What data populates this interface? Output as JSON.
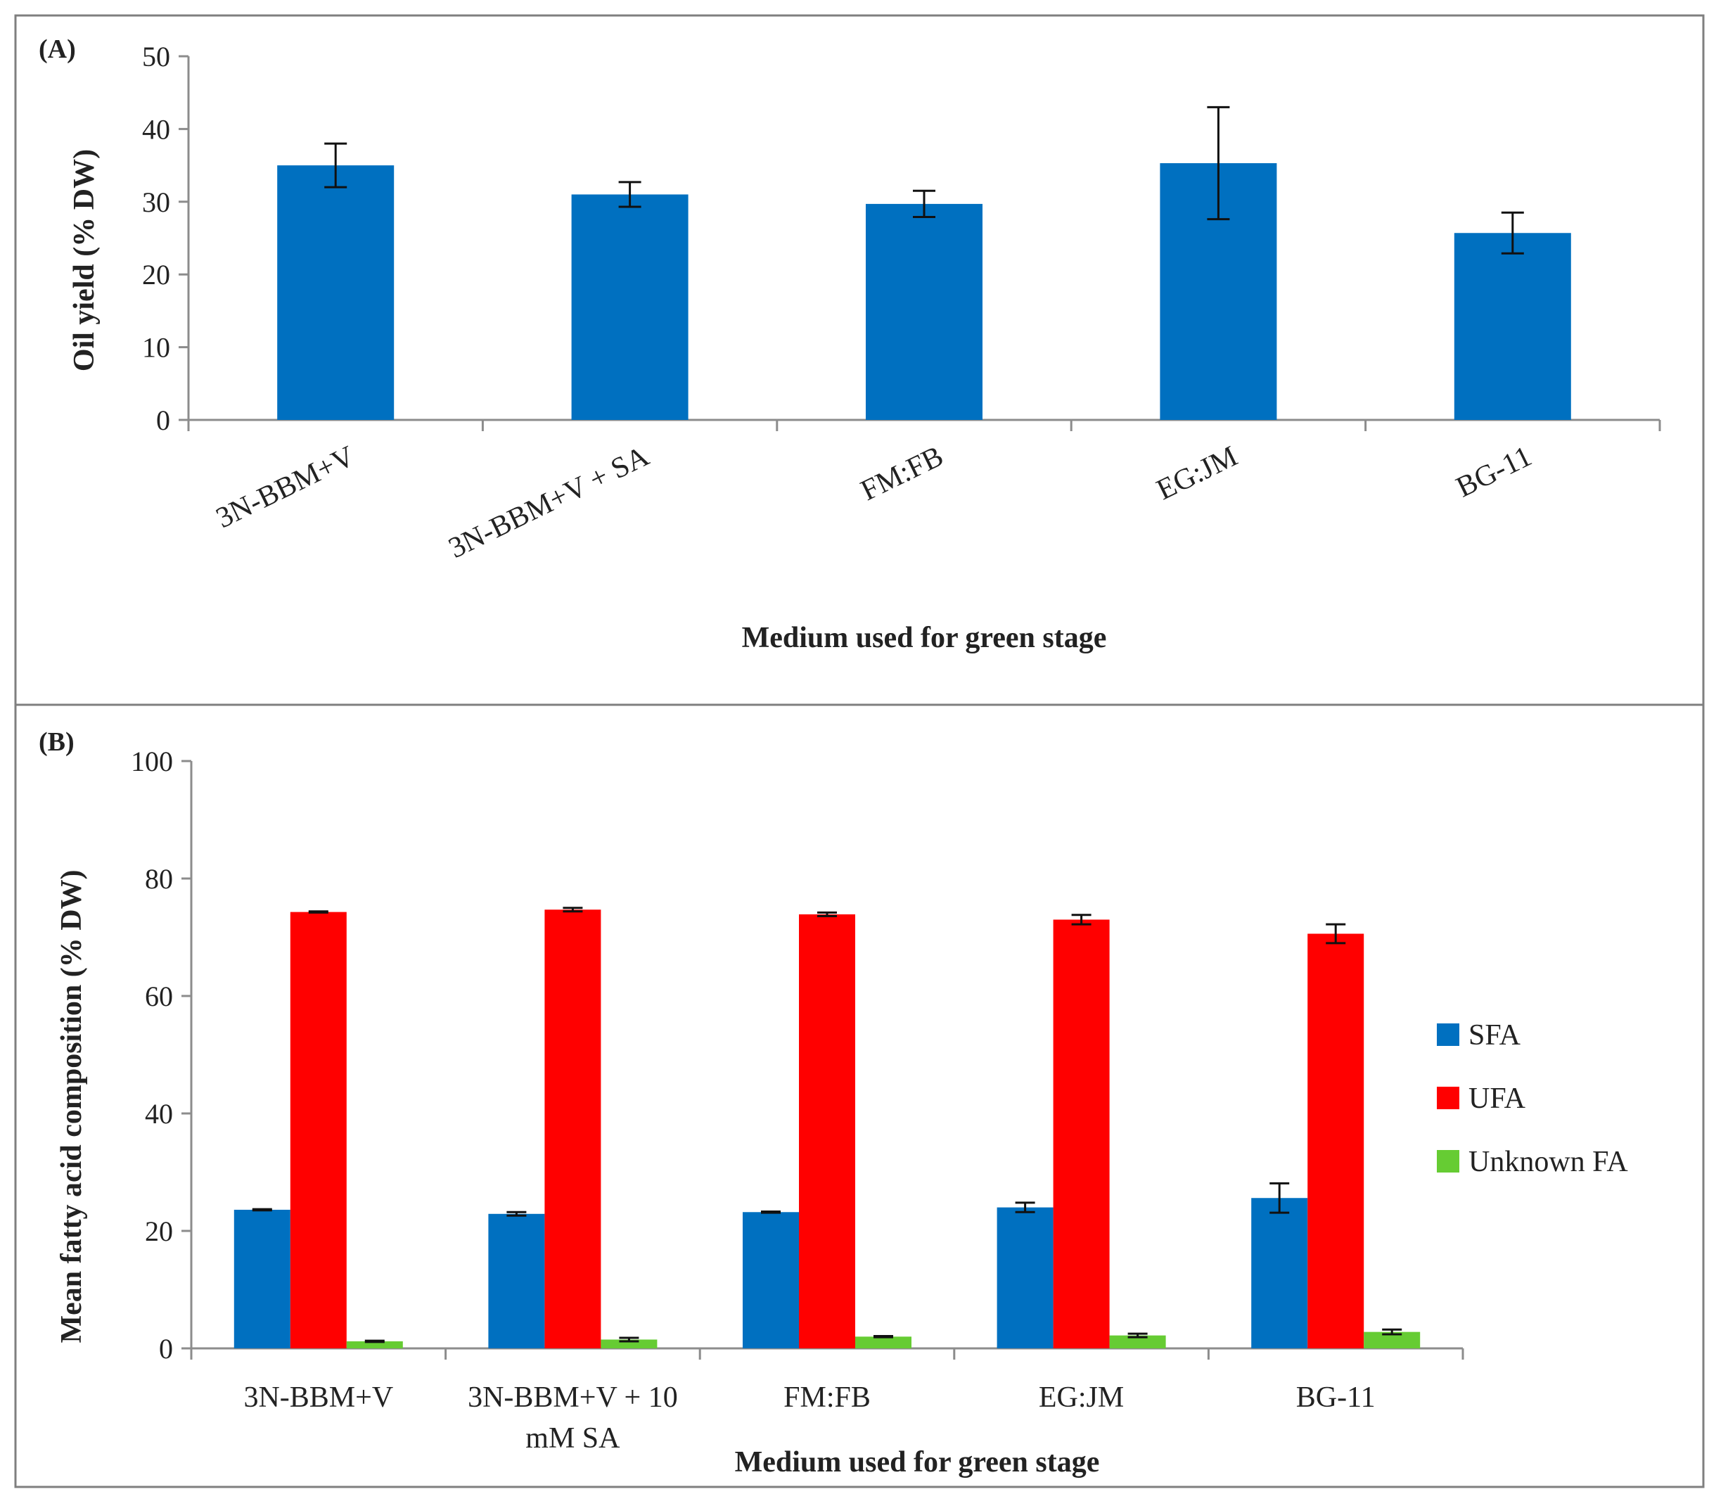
{
  "chart_data": [
    {
      "panel": "(A)",
      "type": "bar",
      "categories": [
        "3N-BBM+V",
        "3N-BBM+V + SA",
        "FM:FB",
        "EG:JM",
        "BG-11"
      ],
      "series": [
        {
          "name": "Oil yield",
          "values": [
            35.0,
            31.0,
            29.7,
            35.3,
            25.7
          ],
          "errors": [
            3.0,
            1.7,
            1.8,
            7.7,
            2.8
          ]
        }
      ],
      "xlabel": "Medium used for green stage",
      "ylabel": "Oil yield (% DW)",
      "ylim": [
        0,
        50
      ],
      "yticks": [
        0,
        10,
        20,
        30,
        40,
        50
      ],
      "colors": [
        "#0070c0"
      ],
      "legend": false
    },
    {
      "panel": "(B)",
      "type": "bar",
      "categories": [
        "3N-BBM+V",
        "3N-BBM+V + 10 mM SA",
        "FM:FB",
        "EG:JM",
        "BG-11"
      ],
      "category_lines": [
        [
          "3N-BBM+V"
        ],
        [
          "3N-BBM+V + 10",
          "mM SA"
        ],
        [
          "FM:FB"
        ],
        [
          "EG:JM"
        ],
        [
          "BG-11"
        ]
      ],
      "series": [
        {
          "name": "SFA",
          "values": [
            23.6,
            22.9,
            23.2,
            24.0,
            25.6
          ],
          "errors": [
            0.1,
            0.3,
            0.1,
            0.8,
            2.5
          ]
        },
        {
          "name": "UFA",
          "values": [
            74.3,
            74.7,
            73.9,
            73.0,
            70.6
          ],
          "errors": [
            0.1,
            0.3,
            0.3,
            0.8,
            1.6
          ]
        },
        {
          "name": "Unknown FA",
          "values": [
            1.2,
            1.5,
            2.0,
            2.2,
            2.8
          ],
          "errors": [
            0.1,
            0.3,
            0.1,
            0.3,
            0.4
          ]
        }
      ],
      "xlabel": "Medium used for green stage",
      "ylabel": "Mean fatty acid composition (% DW)",
      "ylim": [
        0,
        100
      ],
      "yticks": [
        0,
        20,
        40,
        60,
        80,
        100
      ],
      "colors": [
        "#0070c0",
        "#ff0000",
        "#66cc33"
      ],
      "legend": true,
      "legend_position": "right"
    }
  ]
}
